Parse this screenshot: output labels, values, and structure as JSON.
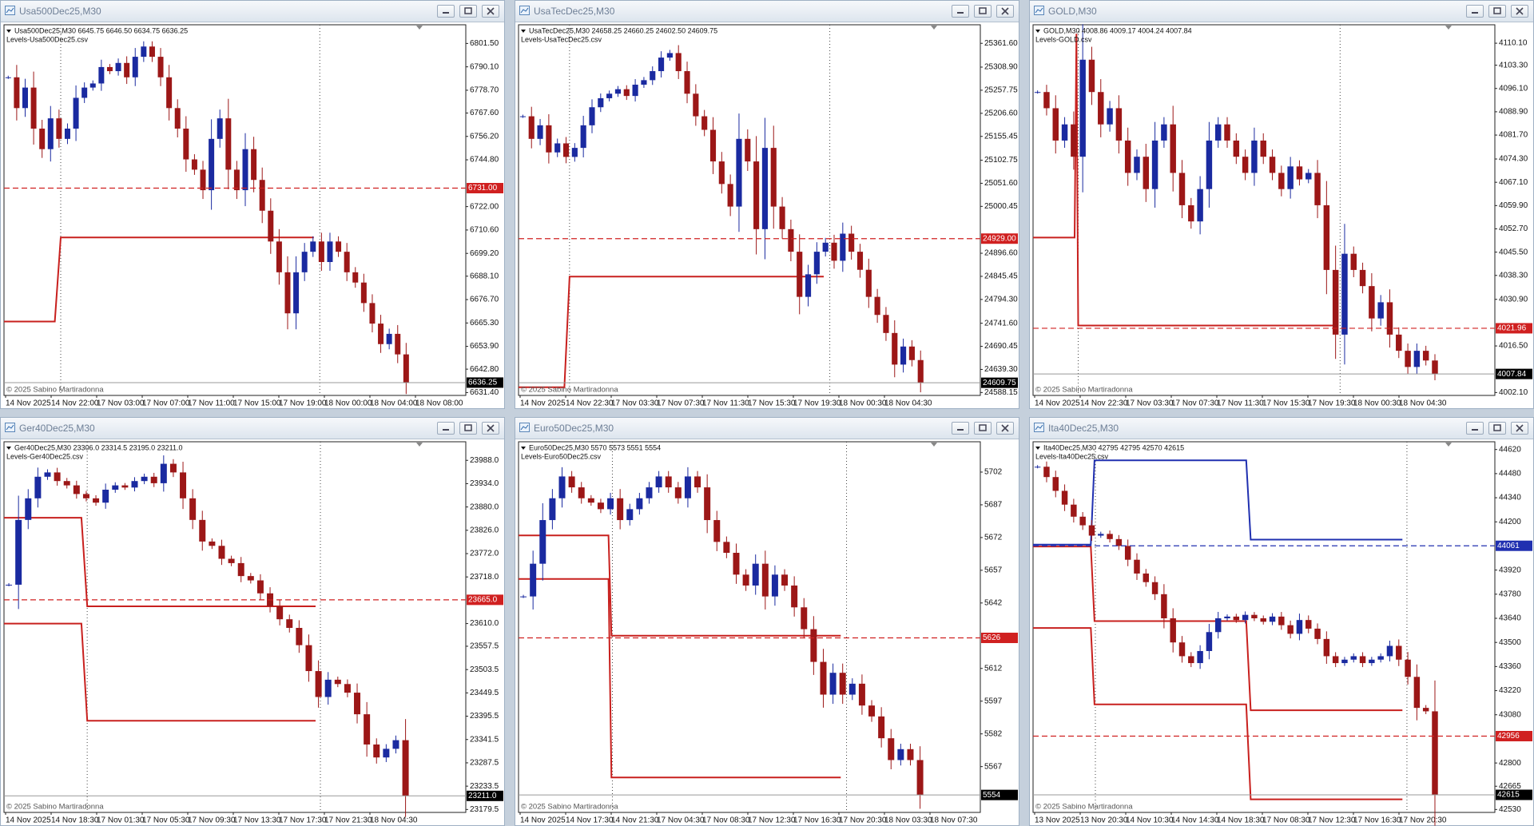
{
  "windows": [
    {
      "title": "Usa500Dec25,M30",
      "info": "Usa500Dec25,M30  6645.75 6646.50 6634.75 6636.25",
      "levels_file": "Levels-Usa500Dec25.csv",
      "copyright": "© 2025 Sabino Martiradonna",
      "ylim": [
        6630.0,
        6810.6
      ],
      "yticks": [
        {
          "value": 6801.5,
          "label": "6801.50"
        },
        {
          "value": 6790.1,
          "label": "6790.10"
        },
        {
          "value": 6778.7,
          "label": "6778.70"
        },
        {
          "value": 6767.6,
          "label": "6767.60"
        },
        {
          "value": 6756.2,
          "label": "6756.20"
        },
        {
          "value": 6744.8,
          "label": "6744.80"
        },
        {
          "value": 6722,
          "label": "6722.00"
        },
        {
          "value": 6710.6,
          "label": "6710.60"
        },
        {
          "value": 6699.2,
          "label": "6699.20"
        },
        {
          "value": 6688.1,
          "label": "6688.10"
        },
        {
          "value": 6676.7,
          "label": "6676.70"
        },
        {
          "value": 6665.3,
          "label": "6665.30"
        },
        {
          "value": 6653.9,
          "label": "6653.90"
        },
        {
          "value": 6642.8,
          "label": "6642.80"
        },
        {
          "value": 6631.4,
          "label": "6631.40"
        }
      ],
      "time_labels": [
        "14 Nov 2025",
        "14 Nov 22:00",
        "17 Nov 03:00",
        "17 Nov 07:00",
        "17 Nov 11:00",
        "17 Nov 15:00",
        "17 Nov 19:00",
        "18 Nov 00:00",
        "18 Nov 04:00",
        "18 Nov 08:00"
      ],
      "closes": [
        6785,
        6770,
        6780,
        6760,
        6750,
        6765,
        6755,
        6760,
        6775,
        6780,
        6782,
        6790,
        6788,
        6792,
        6785,
        6795,
        6800,
        6795,
        6785,
        6770,
        6760,
        6745,
        6740,
        6730,
        6755,
        6765,
        6740,
        6730,
        6750,
        6735,
        6720,
        6705,
        6690,
        6670,
        6690,
        6700,
        6705,
        6695,
        6705,
        6700,
        6690,
        6685,
        6675,
        6665,
        6655,
        6660,
        6650,
        6636.25
      ],
      "day_breaks": [
        6.7,
        37.3
      ],
      "steps": [
        {
          "color": "#c8201e",
          "x": [
            0,
            6,
            6.7,
            36.6
          ],
          "values": [
            6666,
            6666,
            6707,
            6707
          ]
        }
      ],
      "levels": [
        {
          "price": {
            "value": 6731,
            "label": "6731.00"
          },
          "color": "#d02020"
        }
      ],
      "current": {
        "value": 6636.25,
        "label": "6636.25"
      }
    },
    {
      "title": "UsaTecDec25,M30",
      "info": "UsaTecDec25,M30  24658.25 24660.25 24602.50 24609.75",
      "levels_file": "Levels-UsaTecDec25.csv",
      "copyright": "© 2025 Sabino Martiradonna",
      "ylim": [
        24581.7,
        25402.7
      ],
      "yticks": [
        {
          "value": 25361.6,
          "label": "25361.60"
        },
        {
          "value": 25308.9,
          "label": "25308.90"
        },
        {
          "value": 25257.75,
          "label": "25257.75"
        },
        {
          "value": 25206.6,
          "label": "25206.60"
        },
        {
          "value": 25155.45,
          "label": "25155.45"
        },
        {
          "value": 25102.75,
          "label": "25102.75"
        },
        {
          "value": 25051.6,
          "label": "25051.60"
        },
        {
          "value": 25000.45,
          "label": "25000.45"
        },
        {
          "value": 24896.6,
          "label": "24896.60"
        },
        {
          "value": 24845.45,
          "label": "24845.45"
        },
        {
          "value": 24794.3,
          "label": "24794.30"
        },
        {
          "value": 24741.6,
          "label": "24741.60"
        },
        {
          "value": 24690.45,
          "label": "24690.45"
        },
        {
          "value": 24639.3,
          "label": "24639.30"
        },
        {
          "value": 24588.15,
          "label": "24588.15"
        }
      ],
      "time_labels": [
        "14 Nov 2025",
        "14 Nov 22:30",
        "17 Nov 03:30",
        "17 Nov 07:30",
        "17 Nov 11:30",
        "17 Nov 15:30",
        "17 Nov 19:30",
        "18 Nov 00:30",
        "18 Nov 04:30"
      ],
      "closes": [
        25200,
        25150,
        25180,
        25120,
        25140,
        25110,
        25130,
        25180,
        25220,
        25240,
        25250,
        25260,
        25245,
        25270,
        25280,
        25300,
        25330,
        25340,
        25300,
        25250,
        25200,
        25170,
        25100,
        25050,
        25000,
        25150,
        25100,
        24950,
        25130,
        25000,
        24950,
        24900,
        24800,
        24850,
        24900,
        24920,
        24880,
        24940,
        24900,
        24860,
        24800,
        24760,
        24720,
        24650,
        24690,
        24660,
        24609.75
      ],
      "day_breaks": [
        5.9,
        36
      ],
      "steps": [
        {
          "color": "#c8201e",
          "x": [
            0,
            5.3,
            5.9,
            35.3
          ],
          "values": [
            24600,
            24600,
            24845,
            24845
          ]
        }
      ],
      "levels": [
        {
          "price": {
            "value": 24929,
            "label": "24929.00"
          },
          "color": "#d02020"
        }
      ],
      "current": {
        "value": 24609.75,
        "label": "24609.75"
      }
    },
    {
      "title": "GOLD,M30",
      "info": "GOLD,M30  4008.86 4009.17 4004.24 4007.84",
      "levels_file": "Levels-GOLD.csv",
      "copyright": "© 2025 Sabino Martiradonna",
      "ylim": [
        4001.2,
        4115.8
      ],
      "yticks": [
        {
          "value": 4110.1,
          "label": "4110.10"
        },
        {
          "value": 4103.3,
          "label": "4103.30"
        },
        {
          "value": 4096.1,
          "label": "4096.10"
        },
        {
          "value": 4088.9,
          "label": "4088.90"
        },
        {
          "value": 4081.7,
          "label": "4081.70"
        },
        {
          "value": 4074.3,
          "label": "4074.30"
        },
        {
          "value": 4067.1,
          "label": "4067.10"
        },
        {
          "value": 4059.9,
          "label": "4059.90"
        },
        {
          "value": 4052.7,
          "label": "4052.70"
        },
        {
          "value": 4045.5,
          "label": "4045.50"
        },
        {
          "value": 4038.3,
          "label": "4038.30"
        },
        {
          "value": 4030.9,
          "label": "4030.90"
        },
        {
          "value": 4016.5,
          "label": "4016.50"
        },
        {
          "value": 4002.1,
          "label": "4002.10"
        }
      ],
      "time_labels": [
        "14 Nov 2025",
        "14 Nov 22:30",
        "17 Nov 03:30",
        "17 Nov 07:30",
        "17 Nov 11:30",
        "17 Nov 15:30",
        "17 Nov 19:30",
        "18 Nov 00:30",
        "18 Nov 04:30"
      ],
      "closes": [
        4095,
        4090,
        4080,
        4085,
        4075,
        4105,
        4095,
        4085,
        4090,
        4080,
        4070,
        4075,
        4065,
        4080,
        4085,
        4070,
        4060,
        4055,
        4065,
        4080,
        4085,
        4080,
        4075,
        4070,
        4080,
        4075,
        4070,
        4065,
        4072,
        4068,
        4070,
        4060,
        4040,
        4020,
        4045,
        4040,
        4035,
        4025,
        4030,
        4020,
        4015,
        4010,
        4015,
        4012,
        4007.84
      ],
      "day_breaks": [
        5,
        34
      ],
      "steps": [
        {
          "color": "#c8201e",
          "x": [
            0,
            4.6,
            4.8,
            5,
            33.4
          ],
          "values": [
            4050,
            4050,
            4113,
            4022.8,
            4022.8
          ]
        }
      ],
      "levels": [
        {
          "price": {
            "value": 4021.96,
            "label": "4021.96"
          },
          "color": "#d02020"
        }
      ],
      "current": {
        "value": 4007.84,
        "label": "4007.84"
      }
    },
    {
      "title": "Ger40Dec25,M30",
      "info": "Ger40Dec25,M30  23306.0 23314.5 23195.0 23211.0",
      "levels_file": "Levels-Ger40Dec25.csv",
      "copyright": "© 2025 Sabino Martiradonna",
      "ylim": [
        23172.7,
        24031
      ],
      "yticks": [
        {
          "value": 23988,
          "label": "23988.0"
        },
        {
          "value": 23934,
          "label": "23934.0"
        },
        {
          "value": 23880,
          "label": "23880.0"
        },
        {
          "value": 23826,
          "label": "23826.0"
        },
        {
          "value": 23772,
          "label": "23772.0"
        },
        {
          "value": 23718,
          "label": "23718.0"
        },
        {
          "value": 23610,
          "label": "23610.0"
        },
        {
          "value": 23557.5,
          "label": "23557.5"
        },
        {
          "value": 23503.5,
          "label": "23503.5"
        },
        {
          "value": 23449.5,
          "label": "23449.5"
        },
        {
          "value": 23395.5,
          "label": "23395.5"
        },
        {
          "value": 23341.5,
          "label": "23341.5"
        },
        {
          "value": 23287.5,
          "label": "23287.5"
        },
        {
          "value": 23233.5,
          "label": "23233.5"
        },
        {
          "value": 23179.5,
          "label": "23179.5"
        }
      ],
      "time_labels": [
        "14 Nov 2025",
        "14 Nov 18:30",
        "17 Nov 01:30",
        "17 Nov 05:30",
        "17 Nov 09:30",
        "17 Nov 13:30",
        "17 Nov 17:30",
        "17 Nov 21:30",
        "18 Nov 04:30"
      ],
      "closes": [
        23700,
        23850,
        23900,
        23950,
        23960,
        23940,
        23930,
        23910,
        23900,
        23890,
        23920,
        23930,
        23925,
        23940,
        23950,
        23935,
        23980,
        23960,
        23900,
        23850,
        23800,
        23790,
        23760,
        23750,
        23720,
        23710,
        23680,
        23650,
        23620,
        23600,
        23560,
        23500,
        23440,
        23480,
        23470,
        23450,
        23400,
        23330,
        23300,
        23320,
        23340,
        23211
      ],
      "day_breaks": [
        8.6,
        32.7
      ],
      "steps": [
        {
          "color": "#c8201e",
          "x": [
            0,
            8,
            8.6,
            32.2
          ],
          "values": [
            23855,
            23855,
            23650,
            23650
          ]
        },
        {
          "color": "#c8201e",
          "x": [
            0,
            8,
            8.6,
            32.2
          ],
          "values": [
            23610,
            23610,
            23385,
            23385
          ]
        }
      ],
      "levels": [
        {
          "price": {
            "value": 23665,
            "label": "23665.0"
          },
          "color": "#d02020"
        }
      ],
      "current": {
        "value": 23211,
        "label": "23211.0"
      }
    },
    {
      "title": "Euro50Dec25,M30",
      "info": "Euro50Dec25,M30  5570 5573 5551 5554",
      "levels_file": "Levels-Euro50Dec25.csv",
      "copyright": "© 2025 Sabino Martiradonna",
      "ylim": [
        5546,
        5715.9
      ],
      "yticks": [
        5702,
        5687,
        5672,
        5657,
        5642,
        5612,
        5597,
        5582,
        5567
      ],
      "time_labels": [
        "14 Nov 2025",
        "14 Nov 17:30",
        "14 Nov 21:30",
        "17 Nov 04:30",
        "17 Nov 08:30",
        "17 Nov 12:30",
        "17 Nov 16:30",
        "17 Nov 20:30",
        "18 Nov 03:30",
        "18 Nov 07:30"
      ],
      "closes": [
        5645,
        5660,
        5680,
        5690,
        5700,
        5695,
        5690,
        5688,
        5685,
        5690,
        5680,
        5685,
        5690,
        5695,
        5700,
        5695,
        5690,
        5700,
        5695,
        5680,
        5670,
        5665,
        5655,
        5650,
        5660,
        5645,
        5655,
        5650,
        5640,
        5630,
        5615,
        5600,
        5610,
        5600,
        5605,
        5595,
        5590,
        5580,
        5570,
        5575,
        5570,
        5554
      ],
      "day_breaks": [
        9.7,
        33.9
      ],
      "steps": [
        {
          "color": "#c8201e",
          "x": [
            0,
            9.3,
            9.6,
            33.3
          ],
          "values": [
            5673,
            5673,
            5627,
            5627
          ]
        },
        {
          "color": "#c8201e",
          "x": [
            0,
            9.3,
            9.6,
            33.3
          ],
          "values": [
            5653,
            5653,
            5562,
            5562
          ]
        }
      ],
      "levels": [
        {
          "price": 5626,
          "color": "#d02020"
        }
      ],
      "current": 5554
    },
    {
      "title": "Ita40Dec25,M30",
      "info": "Ita40Dec25,M30  42795 42795 42570 42615",
      "levels_file": "Levels-Ita40Dec25.csv",
      "copyright": "© 2025 Sabino Martiradonna",
      "ylim": [
        42513,
        44665
      ],
      "yticks": [
        44620,
        44480,
        44340,
        44200,
        43920,
        43780,
        43640,
        43500,
        43360,
        43220,
        43080,
        42800,
        42665,
        42530
      ],
      "time_labels": [
        "13 Nov 2025",
        "13 Nov 20:30",
        "14 Nov 10:30",
        "14 Nov 14:30",
        "14 Nov 18:30",
        "17 Nov 08:30",
        "17 Nov 12:30",
        "17 Nov 16:30",
        "17 Nov 20:30"
      ],
      "closes": [
        44520,
        44460,
        44380,
        44300,
        44230,
        44180,
        44120,
        44130,
        44100,
        44060,
        43980,
        43900,
        43850,
        43780,
        43640,
        43500,
        43420,
        43380,
        43450,
        43560,
        43640,
        43650,
        43630,
        43660,
        43640,
        43620,
        43650,
        43600,
        43550,
        43630,
        43580,
        43520,
        43420,
        43380,
        43400,
        43420,
        43380,
        43400,
        43420,
        43480,
        43400,
        43300,
        43120,
        43100,
        42615
      ],
      "day_breaks": [
        6.9,
        41.4
      ],
      "steps": [
        {
          "color": "#2030b0",
          "x": [
            0,
            6.4,
            6.8,
            23.6,
            24.1,
            40.9
          ],
          "values": [
            44068,
            44068,
            44557,
            44557,
            44097,
            44097
          ]
        },
        {
          "color": "#c8201e",
          "x": [
            0,
            6.4,
            6.8,
            23.6,
            24.1,
            40.9
          ],
          "values": [
            44057,
            44057,
            43624,
            43624,
            43106,
            43106
          ]
        },
        {
          "color": "#c8201e",
          "x": [
            0,
            6.4,
            6.8,
            23.6,
            24.1,
            40.9
          ],
          "values": [
            43584,
            43584,
            43140,
            43140,
            42589,
            42589
          ]
        }
      ],
      "levels": [
        {
          "price": 44061,
          "color": "#2030b0"
        },
        {
          "price": 42956,
          "color": "#d02020"
        }
      ],
      "current": 42615
    }
  ]
}
